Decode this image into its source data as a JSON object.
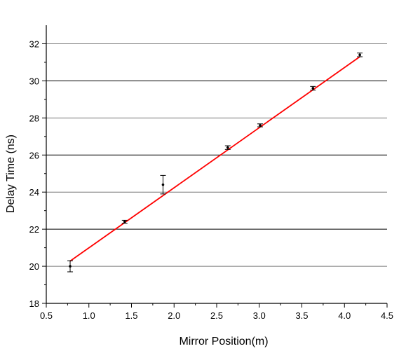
{
  "chart_data": {
    "type": "scatter",
    "title": "",
    "xlabel": "Mirror Position(m)",
    "ylabel": "Delay Time (ns)",
    "xlim": [
      0.5,
      4.5
    ],
    "ylim": [
      18,
      33
    ],
    "grid": {
      "horizontal": true,
      "vertical": false
    },
    "x_ticks": [
      0.5,
      1.0,
      1.5,
      2.0,
      2.5,
      3.0,
      3.5,
      4.0,
      4.5
    ],
    "x_tick_labels": [
      "0.5",
      "1.0",
      "1.5",
      "2.0",
      "2.5",
      "3.0",
      "3.5",
      "4.0",
      "4.5"
    ],
    "y_ticks": [
      18,
      20,
      22,
      24,
      26,
      28,
      30,
      32
    ],
    "y_tick_labels": [
      "18",
      "20",
      "22",
      "24",
      "26",
      "28",
      "30",
      "32"
    ],
    "series": [
      {
        "type": "scatter",
        "points": [
          {
            "x": 0.78,
            "y": 20.0,
            "err": 0.3
          },
          {
            "x": 1.42,
            "y": 22.4,
            "err": 0.08
          },
          {
            "x": 1.87,
            "y": 24.4,
            "err": 0.5
          },
          {
            "x": 2.63,
            "y": 26.4,
            "err": 0.1
          },
          {
            "x": 3.01,
            "y": 27.6,
            "err": 0.08
          },
          {
            "x": 3.63,
            "y": 29.6,
            "err": 0.1
          },
          {
            "x": 4.18,
            "y": 31.4,
            "err": 0.1
          }
        ],
        "color": "#000000"
      },
      {
        "type": "line",
        "points": [
          {
            "x": 0.78,
            "y": 20.28
          },
          {
            "x": 4.18,
            "y": 31.3
          }
        ],
        "color": "#ff0000"
      }
    ]
  }
}
